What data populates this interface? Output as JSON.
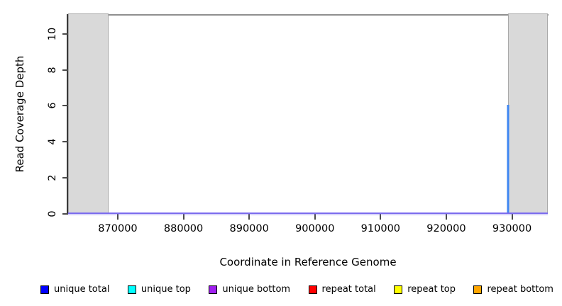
{
  "chart_data": {
    "type": "line",
    "title": "",
    "xlabel": "Coordinate in Reference Genome",
    "ylabel": "Read Coverage Depth",
    "xlim": [
      862440,
      935450
    ],
    "ylim": [
      0,
      11.05
    ],
    "x_ticks": [
      870000,
      880000,
      890000,
      900000,
      910000,
      920000,
      930000
    ],
    "y_ticks": [
      0,
      2,
      4,
      6,
      8,
      10
    ],
    "grid": false,
    "legend_position": "bottom",
    "shaded_regions": [
      {
        "name": "left-shaded-region",
        "x0": 862440,
        "x1": 868650,
        "fill": "#d9d9d9",
        "border": "#a9a9a9"
      },
      {
        "name": "right-shaded-region",
        "x0": 929350,
        "x1": 935450,
        "fill": "#d9d9d9",
        "border": "#a9a9a9"
      }
    ],
    "series": [
      {
        "name": "unique total",
        "color": "#0000ff",
        "baseline": 0,
        "points": [
          {
            "x": 929400,
            "y": 6
          }
        ]
      },
      {
        "name": "unique top",
        "color": "#00ffff",
        "baseline": null,
        "points": []
      },
      {
        "name": "unique bottom",
        "color": "#a020f0",
        "baseline": 0,
        "points": []
      },
      {
        "name": "repeat total",
        "color": "#ff0000",
        "baseline": null,
        "points": []
      },
      {
        "name": "repeat top",
        "color": "#ffff00",
        "baseline": null,
        "points": []
      },
      {
        "name": "repeat bottom",
        "color": "#ffa500",
        "baseline": null,
        "points": []
      }
    ],
    "spike": {
      "x": 929400,
      "depth": 6,
      "observed_color": "#3e86f2"
    },
    "baseline_observed_color": "#7c6cee",
    "axis_colors": {
      "left_axis": "#383838",
      "top_border": "#8f8f8f",
      "tick": "#4a4a4a"
    }
  },
  "legend": {
    "items": [
      {
        "label": "unique total",
        "color": "#0000ff"
      },
      {
        "label": "unique top",
        "color": "#00ffff"
      },
      {
        "label": "unique bottom",
        "color": "#a020f0"
      },
      {
        "label": "repeat total",
        "color": "#ff0000"
      },
      {
        "label": "repeat top",
        "color": "#ffff00"
      },
      {
        "label": "repeat bottom",
        "color": "#ffa500"
      }
    ]
  }
}
